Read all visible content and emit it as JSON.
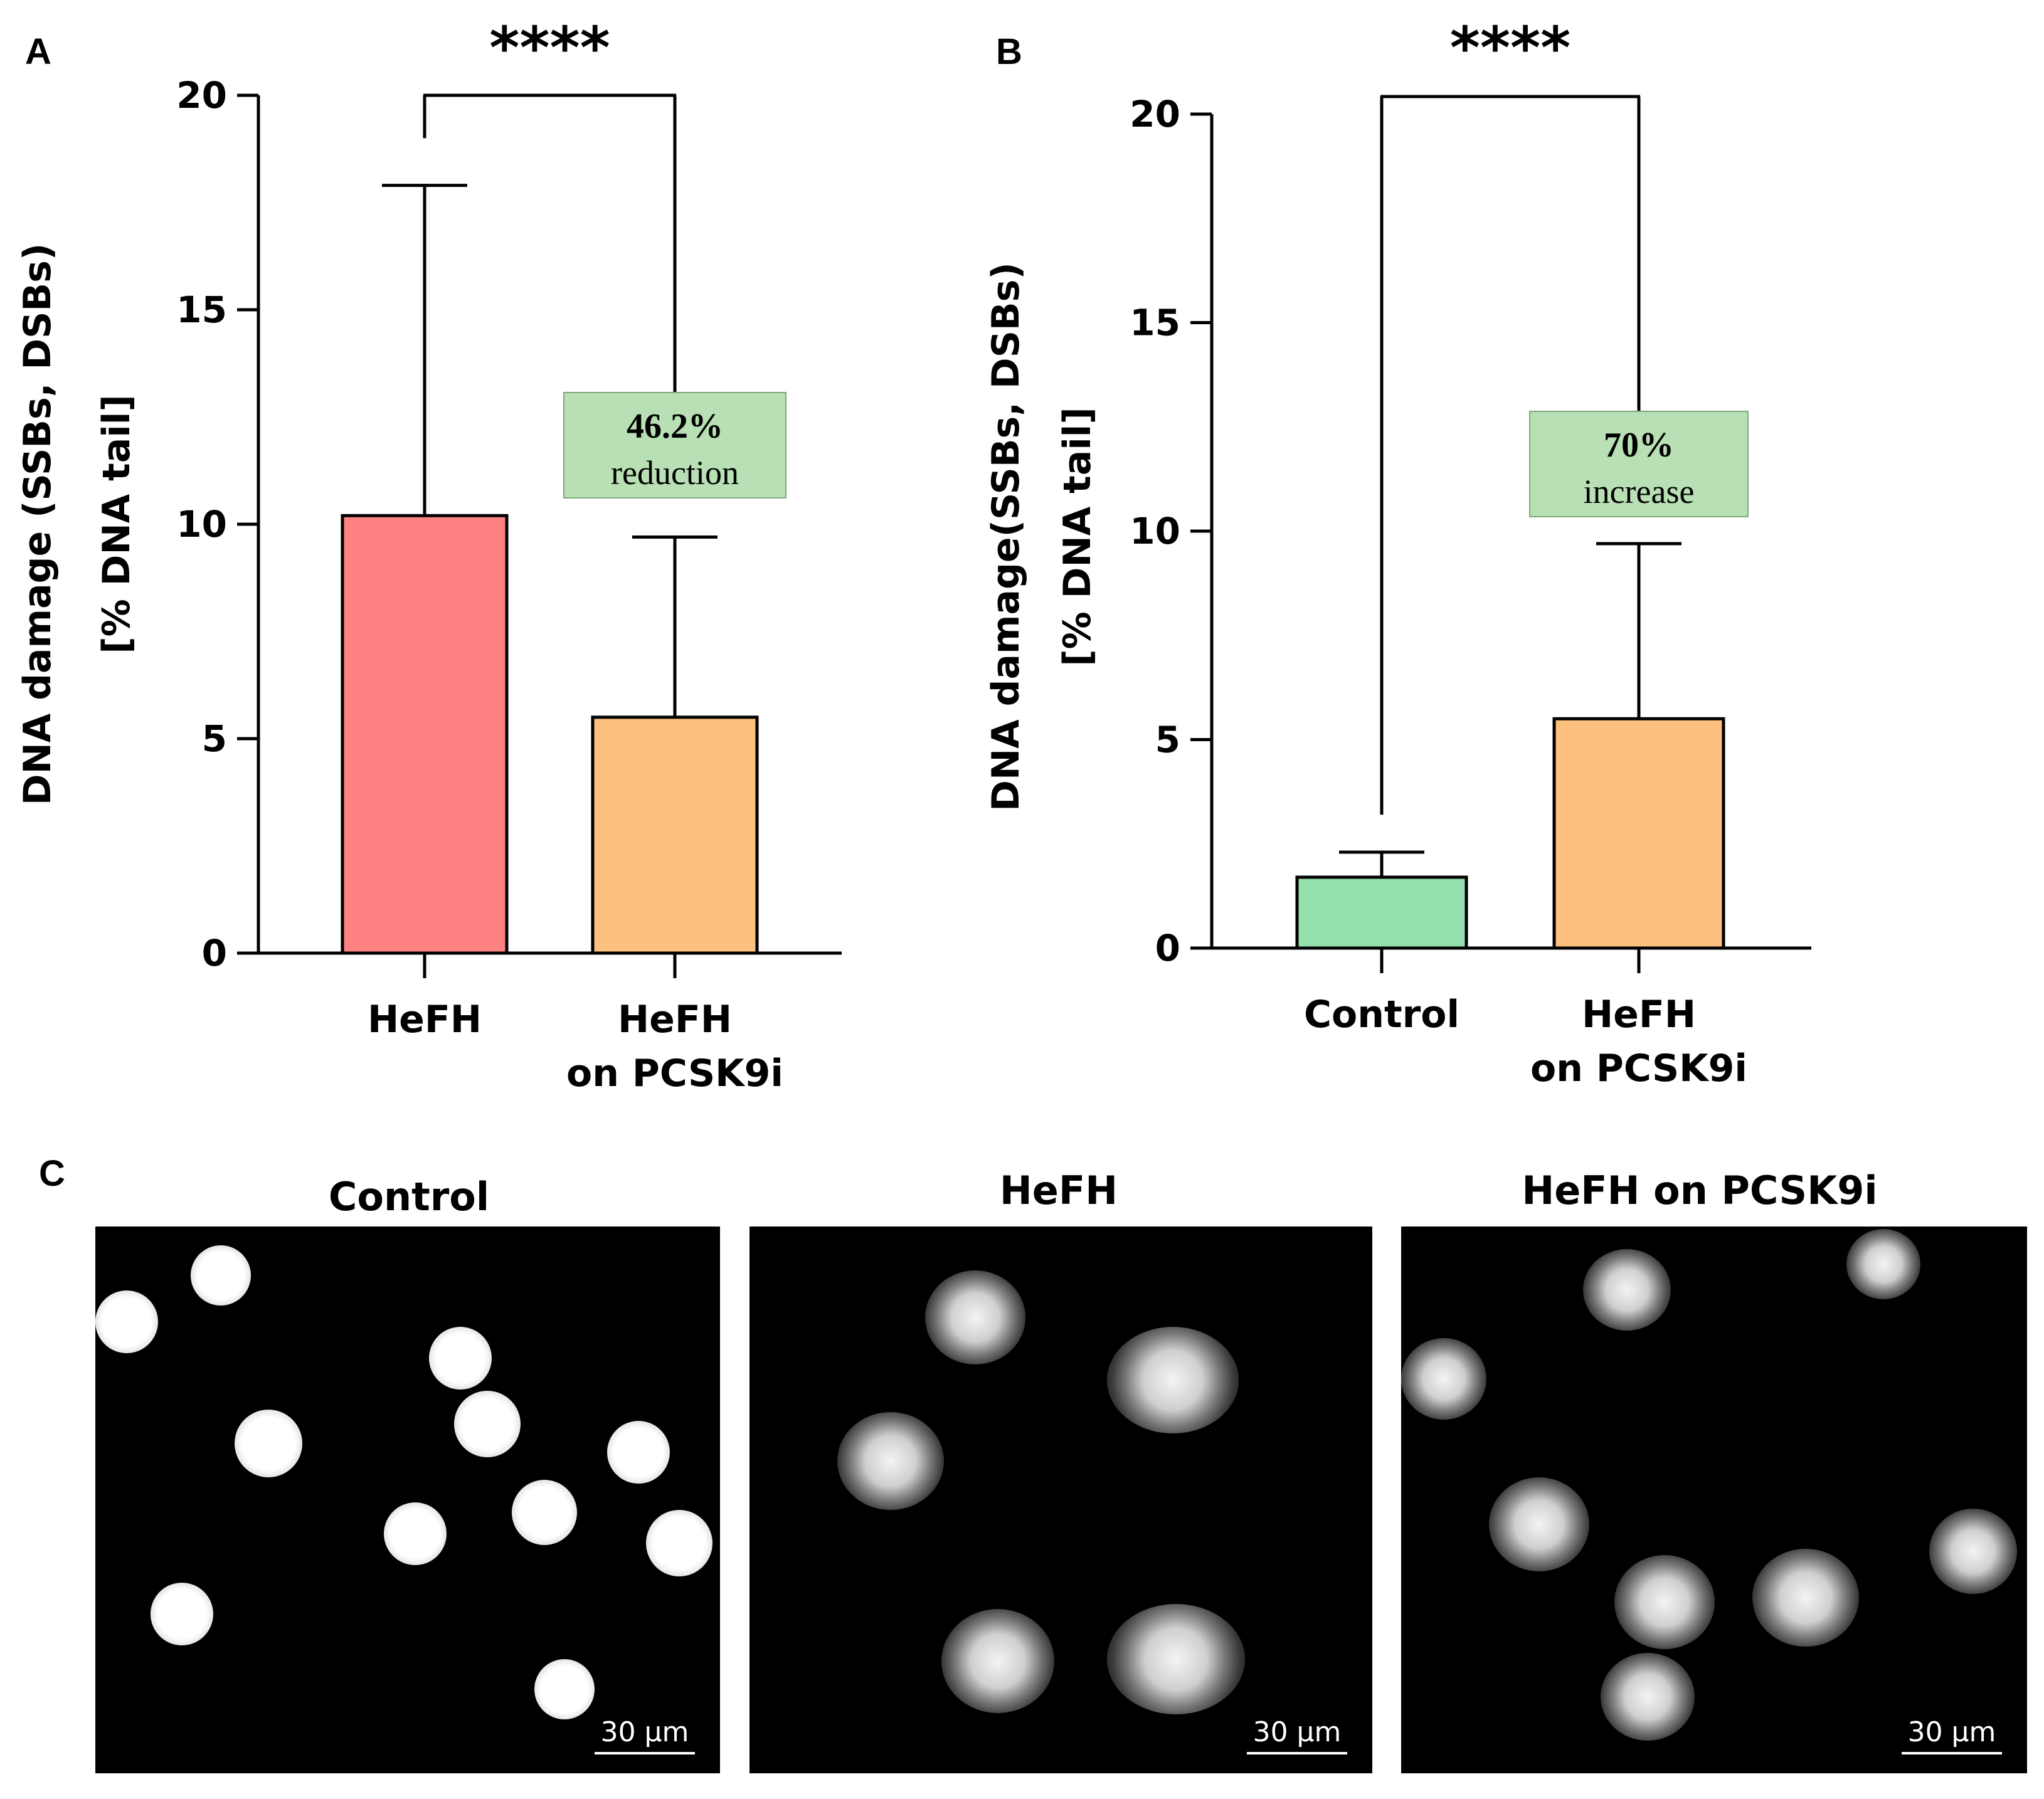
{
  "chart_data": [
    {
      "panel": "A",
      "type": "bar",
      "categories": [
        [
          "HeFH"
        ],
        [
          "HeFH",
          "on PCSK9i"
        ]
      ],
      "values": [
        10.2,
        5.5
      ],
      "error_upper": [
        17.9,
        9.7
      ],
      "colors": [
        "#ff8282",
        "#fcc17e"
      ],
      "ylabel": [
        "DNA damage (SSBs, DSBs)",
        "[% DNA tail]"
      ],
      "ylim": [
        0,
        20
      ],
      "yticks": [
        "0",
        "5",
        "10",
        "15",
        "20"
      ],
      "significance": "****",
      "annotation": {
        "value": "46.2%",
        "text": "reduction",
        "color": "#b8e0b4"
      }
    },
    {
      "panel": "B",
      "type": "bar",
      "categories": [
        [
          "Control"
        ],
        [
          "HeFH",
          "on PCSK9i"
        ]
      ],
      "values": [
        1.7,
        5.5
      ],
      "error_upper": [
        2.3,
        9.7
      ],
      "colors": [
        "#94e0ac",
        "#fcc17e"
      ],
      "ylabel": [
        "DNA damage(SSBs, DSBs)",
        "[% DNA tail]"
      ],
      "ylim": [
        0,
        20
      ],
      "yticks": [
        "0",
        "5",
        "10",
        "15",
        "20"
      ],
      "significance": "****",
      "annotation": {
        "value": "70%",
        "text": "increase",
        "color": "#b8e0b4"
      }
    }
  ],
  "micrographs": {
    "panel": "C",
    "items": [
      {
        "title": "Control",
        "scale": "30 µm"
      },
      {
        "title": "HeFH",
        "scale": "30 µm"
      },
      {
        "title": "HeFH on PCSK9i",
        "scale": "30 µm"
      }
    ]
  }
}
